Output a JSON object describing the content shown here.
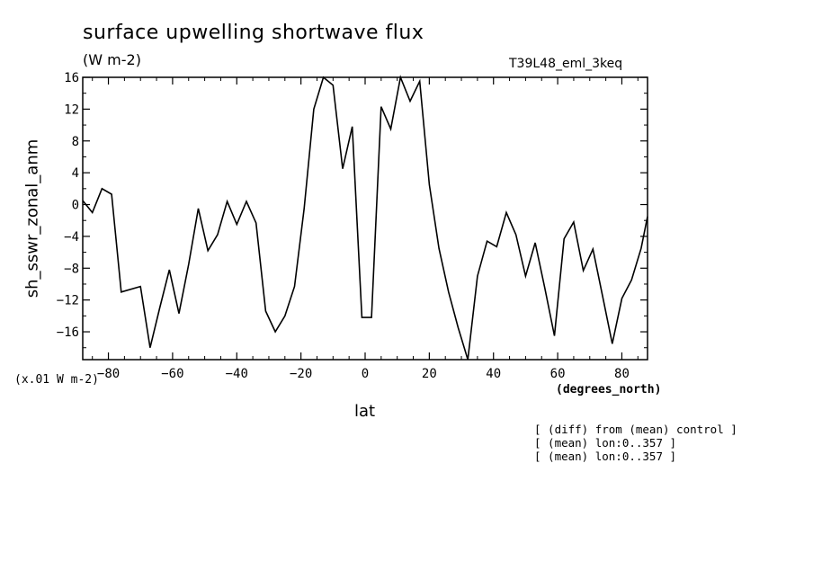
{
  "chart_data": {
    "type": "line",
    "title": "surface upwelling shortwave flux",
    "units_label": "(W m-2)",
    "run_label": "T39L48_eml_3keq",
    "ylabel": "sh_sswr_zonal_anm",
    "xlabel": "lat",
    "x_units": "(degrees_north)",
    "y_scale_note": "(x.01 W m-2)",
    "xlim": [
      -88,
      88
    ],
    "ylim": [
      -19.5,
      16
    ],
    "xticks": [
      -80,
      -60,
      -40,
      -20,
      0,
      20,
      40,
      60,
      80
    ],
    "yticks": [
      -16,
      -12,
      -8,
      -4,
      0,
      4,
      8,
      12,
      16
    ],
    "x_tick_labels": [
      "−80",
      "−60",
      "−40",
      "−20",
      "0",
      "20",
      "40",
      "60",
      "80"
    ],
    "y_tick_labels": [
      "−16",
      "−12",
      "−8",
      "−4",
      "0",
      "4",
      "8",
      "12",
      "16"
    ],
    "grid": false,
    "series": [
      {
        "x": [
          -88,
          -85,
          -82,
          -79,
          -76,
          -70,
          -67,
          -64,
          -61,
          -58,
          -55,
          -52,
          -49,
          -46,
          -43,
          -40,
          -37,
          -34,
          -31,
          -28,
          -25,
          -22,
          -19,
          -16,
          -13,
          -10,
          -7,
          -4,
          -1,
          2,
          5,
          8,
          11,
          14,
          17,
          20,
          23,
          26,
          29,
          32,
          35,
          38,
          41,
          44,
          47,
          50,
          53,
          56,
          59,
          62,
          65,
          68,
          71,
          74,
          77,
          80,
          83,
          86,
          88
        ],
        "y": [
          0.5,
          -1,
          2,
          1.3,
          -11,
          -10.3,
          -18,
          -13,
          -8.2,
          -13.7,
          -7.5,
          -0.5,
          -5.8,
          -3.8,
          0.4,
          -2.5,
          0.4,
          -2.3,
          -13.4,
          -16,
          -14,
          -10.3,
          -0.5,
          12,
          16,
          15,
          4.5,
          9.8,
          -14.2,
          -14.2,
          12.3,
          9.5,
          16,
          13,
          15.5,
          2.5,
          -5.5,
          -11,
          -15.5,
          -19.5,
          -9,
          -4.6,
          -5.3,
          -1,
          -3.8,
          -9,
          -4.8,
          -10.5,
          -16.5,
          -4.3,
          -2.2,
          -8.3,
          -5.6,
          -11.5,
          -17.5,
          -11.8,
          -9.5,
          -5.5,
          -1.5
        ]
      }
    ]
  },
  "notes": [
    "[ (diff) from (mean) control ]",
    "[ (mean) lon:0..357 ]",
    "[ (mean) lon:0..357 ]"
  ]
}
